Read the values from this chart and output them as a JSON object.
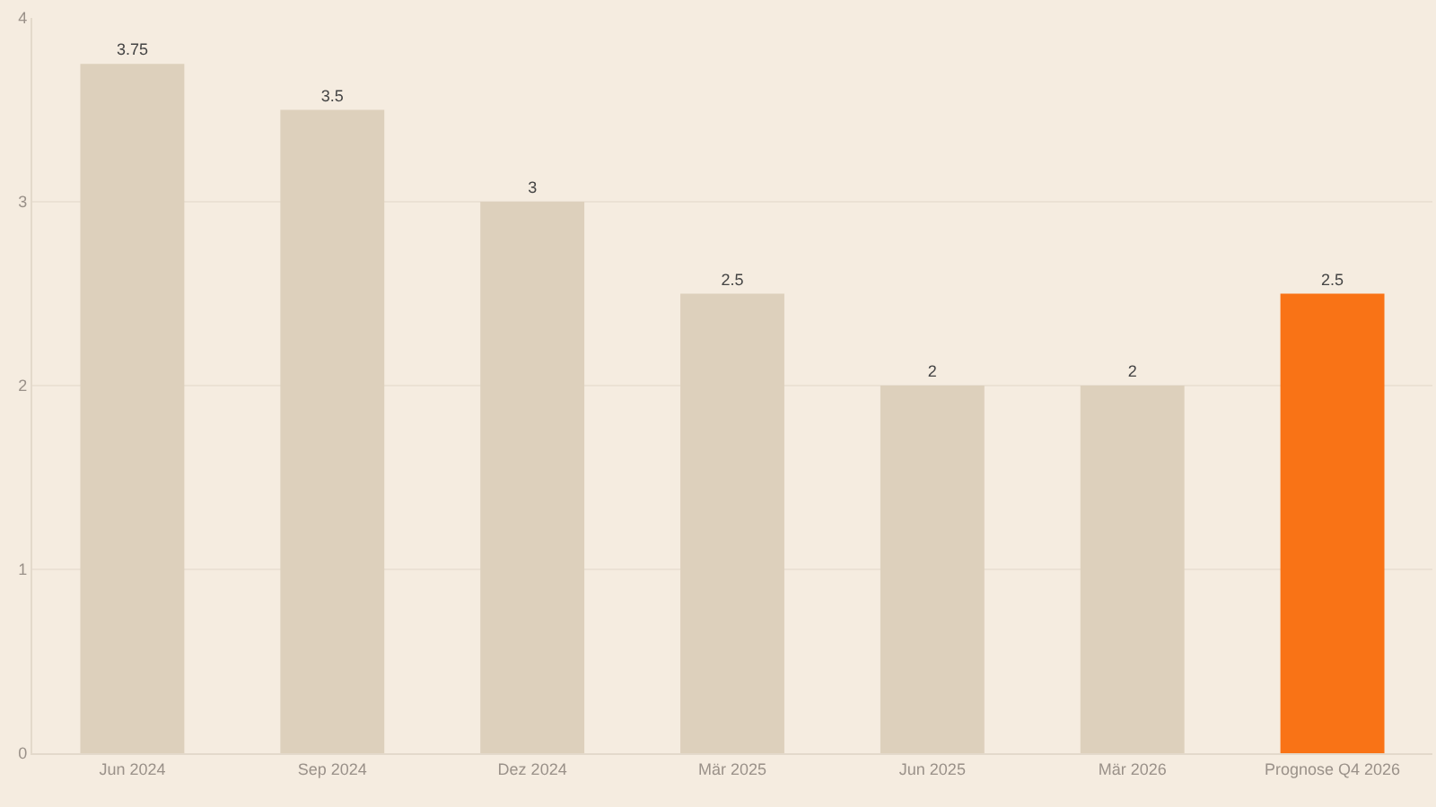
{
  "chart_data": {
    "type": "bar",
    "categories": [
      "Jun 2024",
      "Sep 2024",
      "Dez 2024",
      "Mär 2025",
      "Jun 2025",
      "Mär 2026",
      "Prognose Q4 2026"
    ],
    "values": [
      3.75,
      3.5,
      3,
      2.5,
      2,
      2,
      2.5
    ],
    "colors": [
      "#ddd0bc",
      "#ddd0bc",
      "#ddd0bc",
      "#ddd0bc",
      "#ddd0bc",
      "#ddd0bc",
      "#f97316"
    ],
    "ylim": [
      0,
      4
    ],
    "yticks": [
      0,
      1,
      2,
      3,
      4
    ],
    "grid": "y",
    "data_labels": true
  }
}
